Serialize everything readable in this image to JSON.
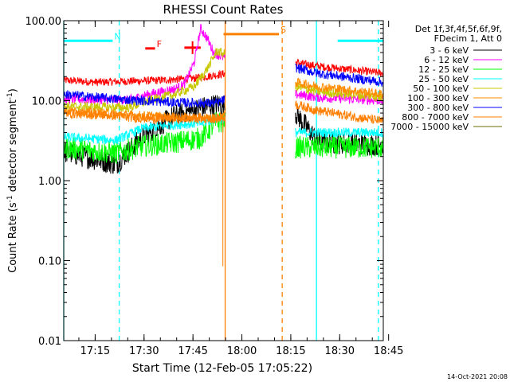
{
  "chart_data": {
    "type": "line",
    "title": "RHESSI Count Rates",
    "xlabel": "Start Time (12-Feb-05 17:05:22)",
    "ylabel_main": "Count Rate (s",
    "ylabel_sup1": "-1",
    "ylabel_mid": " detector segment",
    "ylabel_sup2": "-1",
    "ylabel_end": ")",
    "y_scale": "log",
    "ylim": [
      0.01,
      100
    ],
    "y_ticks": [
      {
        "value": 100,
        "label": "100.00"
      },
      {
        "value": 10,
        "label": "10.00"
      },
      {
        "value": 1,
        "label": "1.00"
      },
      {
        "value": 0.1,
        "label": "0.10"
      },
      {
        "value": 0.01,
        "label": "0.01"
      }
    ],
    "xlim_minutes": [
      0,
      98
    ],
    "x_ticks": [
      {
        "value": 9.63,
        "label": "17:15"
      },
      {
        "value": 24.63,
        "label": "17:30"
      },
      {
        "value": 39.63,
        "label": "17:45"
      },
      {
        "value": 54.63,
        "label": "18:00"
      },
      {
        "value": 69.63,
        "label": "18:15"
      },
      {
        "value": 84.63,
        "label": "18:30"
      },
      {
        "value": 99.63,
        "label": "18:45"
      }
    ],
    "legend_header": [
      "Det 1f,3f,4f,5f,6f,9f,",
      "FDecim 1, Att 0"
    ],
    "legend_placement": "right",
    "footer_date": "14-Oct-2021 20:08",
    "series": [
      {
        "name": "3 - 6 keV",
        "color": "#000000",
        "values": [
          [
            0,
            2.3
          ],
          [
            16,
            1.6
          ],
          [
            24,
            3.5
          ],
          [
            34,
            6.5
          ],
          [
            44,
            8.5
          ],
          [
            47,
            9
          ],
          [
            71,
            7
          ],
          [
            74,
            5
          ],
          [
            78,
            3
          ],
          [
            98,
            2.8
          ]
        ]
      },
      {
        "name": "6 - 12 keV",
        "color": "#ff00ff",
        "values": [
          [
            0,
            10.5
          ],
          [
            20,
            10.2
          ],
          [
            26,
            12
          ],
          [
            34,
            14
          ],
          [
            37,
            16
          ],
          [
            40,
            30
          ],
          [
            42,
            80
          ],
          [
            44,
            60
          ],
          [
            46,
            40
          ],
          [
            47,
            38
          ],
          [
            71,
            12
          ],
          [
            78,
            11
          ],
          [
            98,
            10
          ]
        ]
      },
      {
        "name": "12 - 25 keV",
        "color": "#00ff00",
        "values": [
          [
            0,
            2.6
          ],
          [
            16,
            2.2
          ],
          [
            24,
            2.7
          ],
          [
            34,
            3
          ],
          [
            42,
            3.4
          ],
          [
            47,
            5.5
          ],
          [
            71,
            2.6
          ],
          [
            98,
            2.6
          ]
        ]
      },
      {
        "name": "25 - 50 keV",
        "color": "#00ffff",
        "values": [
          [
            0,
            3.5
          ],
          [
            16,
            3.2
          ],
          [
            24,
            4.5
          ],
          [
            34,
            5
          ],
          [
            42,
            5.2
          ],
          [
            47,
            6
          ],
          [
            71,
            4
          ],
          [
            98,
            4
          ]
        ]
      },
      {
        "name": "50 - 100 keV",
        "color": "#c8c800",
        "values": [
          [
            0,
            8.5
          ],
          [
            20,
            8.2
          ],
          [
            26,
            10
          ],
          [
            34,
            12
          ],
          [
            40,
            15
          ],
          [
            44,
            25
          ],
          [
            47,
            42
          ],
          [
            71,
            15
          ],
          [
            78,
            13
          ],
          [
            98,
            11
          ]
        ]
      },
      {
        "name": "100 - 300 keV",
        "color": "#ff8c00",
        "values": [
          [
            0,
            7.5
          ],
          [
            16,
            6.8
          ],
          [
            24,
            6.5
          ],
          [
            34,
            6.2
          ],
          [
            47,
            6
          ],
          [
            71,
            17
          ],
          [
            78,
            15
          ],
          [
            98,
            12
          ]
        ]
      },
      {
        "name": "300 - 800 keV",
        "color": "#0000ff",
        "values": [
          [
            0,
            12
          ],
          [
            16,
            10.5
          ],
          [
            24,
            10
          ],
          [
            34,
            9.5
          ],
          [
            47,
            9.3
          ],
          [
            71,
            26
          ],
          [
            78,
            22
          ],
          [
            98,
            17
          ]
        ]
      },
      {
        "name": "800 - 7000 keV",
        "color": "#ff7f00",
        "values": [
          [
            0,
            7
          ],
          [
            16,
            6.5
          ],
          [
            24,
            6
          ],
          [
            47,
            6
          ],
          [
            71,
            9
          ],
          [
            78,
            7.5
          ],
          [
            98,
            5.5
          ]
        ]
      },
      {
        "name": "7000 - 15000 keV",
        "color": "#6e6e00",
        "values": []
      }
    ],
    "red_series": {
      "color": "#ff0000",
      "values": [
        [
          0,
          18
        ],
        [
          10,
          17
        ],
        [
          20,
          17.5
        ],
        [
          30,
          18
        ],
        [
          40,
          19
        ],
        [
          47,
          21
        ],
        [
          71,
          30
        ],
        [
          78,
          27
        ],
        [
          98,
          22
        ]
      ]
    },
    "flags": [
      {
        "label": "N",
        "color": "#00ffff",
        "level": 56,
        "x_start": 0,
        "x_end": 15
      },
      {
        "label": "F",
        "color": "#ff0000",
        "level": 45,
        "x_start": 25,
        "x_end": 28
      },
      {
        "label": "S",
        "color": "#ff8000",
        "level": 68,
        "x_start": 49,
        "x_end": 66
      },
      {
        "label": "",
        "color": "#00ffff",
        "level": 56,
        "x_start": 84,
        "x_end": 98
      }
    ],
    "red_errorbar": {
      "x_start": 37,
      "x_end": 42,
      "level": 46
    },
    "vlines": [
      {
        "x": 0,
        "color": "#00ffff",
        "style": "solid"
      },
      {
        "x": 17,
        "color": "#00ffff",
        "style": "dashed"
      },
      {
        "x": 49.5,
        "color": "#ff8000",
        "style": "solid"
      },
      {
        "x": 67,
        "color": "#ff8000",
        "style": "dashed"
      },
      {
        "x": 77.5,
        "color": "#00ffff",
        "style": "solid"
      },
      {
        "x": 96.5,
        "color": "#00ffff",
        "style": "dashed"
      }
    ],
    "gap_minutes": [
      49.5,
      71
    ]
  }
}
